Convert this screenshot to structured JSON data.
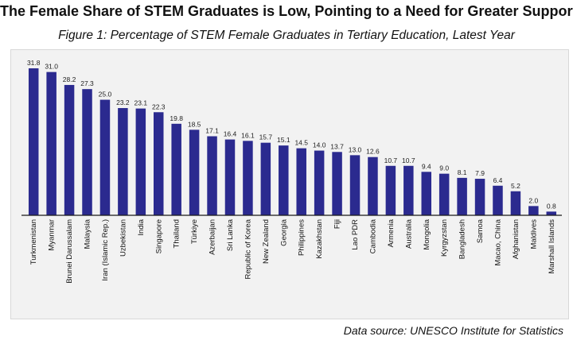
{
  "title": "The Female Share of STEM Graduates is Low, Pointing to a Need for Greater Support",
  "subtitle": "Figure 1: Percentage of STEM Female Graduates in Tertiary Education, Latest Year",
  "source": "Data source: UNESCO Institute for Statistics",
  "colors": {
    "bar": "#2b2a8f",
    "background": "#f2f2f2",
    "axis": "#1a1a1a"
  },
  "chart_data": {
    "type": "bar",
    "title": "The Female Share of STEM Graduates is Low, Pointing to a Need for Greater Support",
    "subtitle": "Figure 1: Percentage of STEM Female Graduates in Tertiary Education, Latest Year",
    "xlabel": "",
    "ylabel": "",
    "ylim": [
      0,
      33
    ],
    "grid": false,
    "categories": [
      "Turkmenistan",
      "Myanmar",
      "Brunei Darussalam",
      "Malaysia",
      "Iran (Islamic Rep.)",
      "Uzbekistan",
      "India",
      "Singapore",
      "Thailand",
      "Türkiye",
      "Azerbaijan",
      "Sri Lanka",
      "Republic of Korea",
      "New Zealand",
      "Georgia",
      "Philippines",
      "Kazakhstan",
      "Fiji",
      "Lao PDR",
      "Cambodia",
      "Armenia",
      "Australia",
      "Mongolia",
      "Kyrgyzstan",
      "Bangladesh",
      "Samoa",
      "Macao, China",
      "Afghanistan",
      "Maldives",
      "Marshall Islands"
    ],
    "values": [
      31.8,
      31.0,
      28.2,
      27.3,
      25.0,
      23.2,
      23.1,
      22.3,
      19.8,
      18.5,
      17.1,
      16.4,
      16.1,
      15.7,
      15.1,
      14.5,
      14.0,
      13.7,
      13.0,
      12.6,
      10.7,
      10.7,
      9.4,
      9.0,
      8.1,
      7.9,
      6.4,
      5.2,
      2.0,
      0.8
    ],
    "value_labels": [
      "31.8",
      "31.0",
      "28.2",
      "27.3",
      "25.0",
      "23.2",
      "23.1",
      "22.3",
      "19.8",
      "18.5",
      "17.1",
      "16.4",
      "16.1",
      "15.7",
      "15.1",
      "14.5",
      "14.0",
      "13.7",
      "13.0",
      "12.6",
      "10.7",
      "10.7",
      "9.4",
      "9.0",
      "8.1",
      "7.9",
      "6.4",
      "5.2",
      "2.0",
      "0.8"
    ]
  }
}
